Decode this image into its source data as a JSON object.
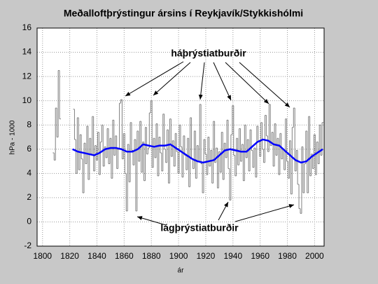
{
  "chart_data": {
    "type": "step",
    "title": "Meðalloftþrýstingur ársins í Reykjavík/Stykkishólmi",
    "xlabel": "ár",
    "ylabel": "hPa - 1000",
    "xlim": [
      1796,
      2007
    ],
    "ylim": [
      -2,
      16
    ],
    "xticks": [
      1800,
      1820,
      1840,
      1860,
      1880,
      1900,
      1920,
      1940,
      1960,
      1980,
      2000
    ],
    "yticks": [
      -2,
      0,
      2,
      4,
      6,
      8,
      10,
      12,
      14,
      16
    ],
    "grid": true,
    "annotations": [
      "háþrýstiatburðir",
      "lágþrýstiatburðir"
    ],
    "series": [
      {
        "color": "#808080",
        "x": [
          1808,
          1809,
          1810,
          1811,
          1812,
          1813,
          1814,
          1823,
          1824,
          1825,
          1826,
          1827,
          1828,
          1829,
          1830,
          1831,
          1832,
          1833,
          1834,
          1835,
          1836,
          1837,
          1838,
          1839,
          1840,
          1841,
          1842,
          1843,
          1844,
          1845,
          1846,
          1847,
          1848,
          1849,
          1850,
          1851,
          1852,
          1853,
          1854,
          1855,
          1856,
          1857,
          1858,
          1859,
          1860,
          1861,
          1862,
          1863,
          1864,
          1865,
          1866,
          1867,
          1868,
          1869,
          1870,
          1871,
          1872,
          1873,
          1874,
          1875,
          1876,
          1877,
          1878,
          1879,
          1880,
          1881,
          1882,
          1883,
          1884,
          1885,
          1886,
          1887,
          1888,
          1889,
          1890,
          1891,
          1892,
          1893,
          1894,
          1895,
          1896,
          1897,
          1898,
          1899,
          1900,
          1901,
          1902,
          1903,
          1904,
          1905,
          1906,
          1907,
          1908,
          1909,
          1910,
          1911,
          1912,
          1913,
          1914,
          1915,
          1916,
          1917,
          1918,
          1919,
          1920,
          1921,
          1922,
          1923,
          1924,
          1925,
          1926,
          1927,
          1928,
          1929,
          1930,
          1931,
          1932,
          1933,
          1934,
          1935,
          1936,
          1937,
          1938,
          1939,
          1940,
          1941,
          1942,
          1943,
          1944,
          1945,
          1946,
          1947,
          1948,
          1949,
          1950,
          1951,
          1952,
          1953,
          1954,
          1955,
          1956,
          1957,
          1958,
          1959,
          1960,
          1961,
          1962,
          1963,
          1964,
          1965,
          1966,
          1967,
          1968,
          1969,
          1970,
          1971,
          1972,
          1973,
          1974,
          1975,
          1976,
          1977,
          1978,
          1979,
          1980,
          1981,
          1982,
          1983,
          1984,
          1985,
          1986,
          1987,
          1988,
          1989,
          1990,
          1991,
          1992,
          1993,
          1994,
          1995,
          1996,
          1997,
          1998,
          1999,
          2000,
          2001,
          2002,
          2003,
          2004,
          2005,
          2006
        ],
        "values": [
          5.7,
          5.1,
          9.4,
          7.0,
          12.5,
          8.5,
          null,
          9.3,
          6.8,
          4.0,
          8.6,
          4.3,
          7.2,
          5.2,
          2.4,
          6.5,
          4.8,
          7.9,
          3.5,
          6.9,
          5.6,
          8.7,
          4.2,
          6.3,
          5.1,
          7.4,
          3.9,
          6.6,
          8.0,
          4.6,
          6.2,
          5.3,
          7.7,
          4.8,
          6.9,
          3.6,
          8.4,
          5.5,
          7.1,
          4.4,
          6.0,
          9.8,
          10.1,
          5.2,
          7.3,
          4.0,
          0.9,
          6.4,
          3.3,
          8.2,
          5.9,
          4.7,
          6.8,
          0.9,
          7.5,
          5.0,
          8.3,
          4.1,
          6.6,
          3.4,
          7.8,
          5.6,
          6.1,
          9.0,
          10.0,
          4.5,
          6.9,
          5.3,
          8.1,
          3.8,
          7.0,
          5.7,
          4.2,
          8.9,
          6.0,
          4.9,
          7.6,
          3.2,
          8.5,
          5.4,
          6.7,
          4.6,
          7.3,
          5.8,
          4.0,
          8.0,
          6.2,
          3.7,
          7.1,
          5.5,
          4.3,
          6.9,
          2.9,
          8.6,
          5.2,
          4.4,
          7.5,
          3.6,
          6.3,
          5.0,
          9.7,
          4.8,
          2.4,
          6.8,
          5.6,
          3.9,
          7.0,
          4.6,
          5.9,
          3.2,
          8.3,
          4.9,
          6.1,
          2.8,
          5.8,
          4.1,
          7.4,
          3.5,
          6.5,
          5.3,
          8.4,
          4.4,
          1.8,
          7.2,
          9.6,
          5.5,
          3.8,
          6.9,
          4.7,
          7.7,
          5.0,
          6.4,
          3.4,
          8.0,
          5.3,
          6.8,
          4.2,
          7.6,
          5.9,
          4.5,
          6.1,
          3.7,
          7.9,
          6.6,
          5.4,
          8.2,
          6.0,
          4.9,
          8.8,
          7.1,
          5.8,
          9.7,
          6.3,
          7.4,
          4.6,
          8.1,
          5.5,
          6.9,
          3.9,
          7.3,
          5.2,
          6.0,
          4.3,
          8.5,
          5.0,
          3.6,
          6.7,
          2.3,
          7.8,
          9.4,
          4.2,
          5.9,
          3.1,
          1.1,
          0.7,
          6.2,
          2.4,
          4.8,
          7.5,
          2.4,
          8.7,
          3.8,
          5.6,
          4.4,
          7.2,
          3.9,
          6.6,
          4.8,
          8.0,
          5.5,
          8.2
        ]
      },
      {
        "color": "#0000ff",
        "smooth": true,
        "x": [
          1822,
          1826,
          1830,
          1834,
          1838,
          1842,
          1846,
          1850,
          1854,
          1858,
          1862,
          1866,
          1870,
          1874,
          1878,
          1882,
          1886,
          1890,
          1894,
          1898,
          1902,
          1906,
          1910,
          1914,
          1918,
          1922,
          1926,
          1930,
          1934,
          1938,
          1942,
          1946,
          1950,
          1954,
          1958,
          1962,
          1966,
          1970,
          1974,
          1978,
          1982,
          1986,
          1990,
          1994,
          1998,
          2002,
          2006
        ],
        "values": [
          6.0,
          5.8,
          5.7,
          5.6,
          5.5,
          5.7,
          6.0,
          6.1,
          6.1,
          6.0,
          5.8,
          5.8,
          6.0,
          6.4,
          6.3,
          6.2,
          6.3,
          6.3,
          6.4,
          6.1,
          5.8,
          5.5,
          5.2,
          5.0,
          4.9,
          5.0,
          5.1,
          5.5,
          5.9,
          6.0,
          5.9,
          5.8,
          5.8,
          6.2,
          6.6,
          6.8,
          6.7,
          6.4,
          6.3,
          5.9,
          5.5,
          5.1,
          4.9,
          5.0,
          5.4,
          5.7,
          6.0
        ]
      }
    ]
  }
}
